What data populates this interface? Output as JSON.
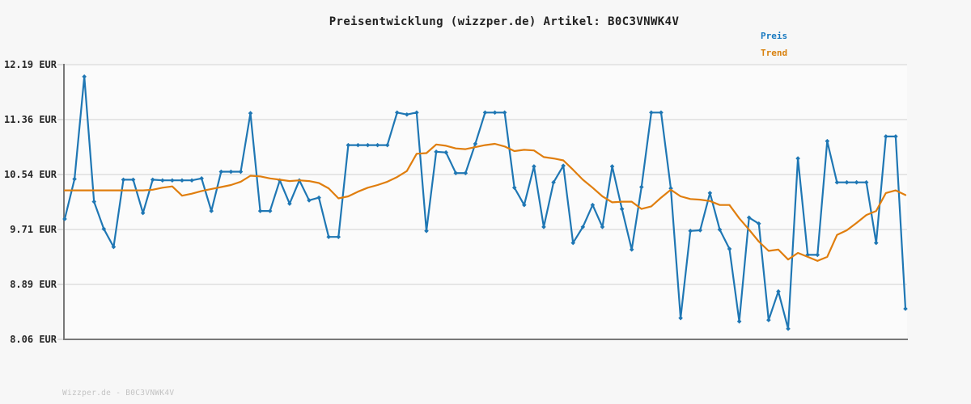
{
  "title": "Preisentwicklung (wizzper.de) Artikel: B0C3VNWK4V",
  "legend": {
    "items": [
      {
        "label": "Preis",
        "color": "#1879c0"
      },
      {
        "label": "Trend",
        "color": "#d9820f"
      }
    ]
  },
  "footer": {
    "watermark": "Wizzper.de - B0C3VNWK4V"
  },
  "colors": {
    "background": "#f7f7f7",
    "plot_background": "#fbfbfb",
    "grid": "#e6e6e6",
    "axis": "#787878",
    "title_text": "#222222",
    "tick_text": "#262626",
    "watermark_text": "#c3c3c3",
    "price_line": "#1f77b4",
    "trend_line": "#e07e0e"
  },
  "chart_data": {
    "type": "line",
    "title": "Preisentwicklung (wizzper.de) Artikel: B0C3VNWK4V",
    "xlabel": "",
    "ylabel": "EUR",
    "ylim": [
      8.06,
      12.19
    ],
    "grid": "horizontal",
    "legend_position": "top-right",
    "x_axis_labels_visible": false,
    "point_count": 87,
    "y_ticks": [
      {
        "label": "12.19 EUR",
        "value": 12.19
      },
      {
        "label": "11.36 EUR",
        "value": 11.36
      },
      {
        "label": "10.54 EUR",
        "value": 10.54
      },
      {
        "label": "9.71 EUR",
        "value": 9.71
      },
      {
        "label": "8.89 EUR",
        "value": 8.89
      },
      {
        "label": "8.06 EUR",
        "value": 8.06
      }
    ],
    "series": [
      {
        "name": "Preis",
        "color": "#1f77b4",
        "markers": true,
        "values": [
          9.87,
          10.47,
          12.01,
          10.13,
          9.72,
          9.45,
          10.46,
          10.46,
          9.96,
          10.46,
          10.45,
          10.45,
          10.45,
          10.45,
          10.48,
          9.99,
          10.58,
          10.58,
          10.58,
          11.46,
          9.99,
          9.99,
          10.45,
          10.1,
          10.45,
          10.15,
          10.19,
          9.6,
          9.6,
          10.98,
          10.98,
          10.98,
          10.98,
          10.98,
          11.47,
          11.44,
          11.47,
          9.69,
          10.88,
          10.87,
          10.56,
          10.56,
          11.0,
          11.47,
          11.47,
          11.47,
          10.34,
          10.08,
          10.66,
          9.75,
          10.42,
          10.67,
          9.51,
          9.75,
          10.08,
          9.75,
          10.66,
          10.02,
          9.41,
          10.35,
          11.47,
          11.47,
          10.33,
          8.38,
          9.69,
          9.7,
          10.26,
          9.71,
          9.42,
          8.33,
          9.89,
          9.8,
          8.35,
          8.78,
          8.22,
          10.78,
          9.33,
          9.33,
          11.04,
          10.42,
          10.42,
          10.42,
          10.42,
          9.51,
          11.11,
          11.11,
          8.52
        ]
      },
      {
        "name": "Trend",
        "color": "#e07e0e",
        "markers": false,
        "values": [
          10.3,
          10.3,
          10.3,
          10.3,
          10.3,
          10.3,
          10.3,
          10.3,
          10.3,
          10.31,
          10.34,
          10.36,
          10.22,
          10.25,
          10.29,
          10.32,
          10.35,
          10.38,
          10.43,
          10.52,
          10.51,
          10.48,
          10.46,
          10.44,
          10.45,
          10.44,
          10.41,
          10.33,
          10.18,
          10.21,
          10.28,
          10.34,
          10.38,
          10.43,
          10.5,
          10.59,
          10.85,
          10.86,
          10.99,
          10.97,
          10.93,
          10.92,
          10.95,
          10.98,
          11.0,
          10.96,
          10.89,
          10.91,
          10.9,
          10.8,
          10.78,
          10.75,
          10.61,
          10.46,
          10.34,
          10.21,
          10.12,
          10.13,
          10.13,
          10.02,
          10.06,
          10.19,
          10.31,
          10.21,
          10.17,
          10.16,
          10.14,
          10.08,
          10.08,
          9.88,
          9.71,
          9.53,
          9.39,
          9.41,
          9.26,
          9.36,
          9.3,
          9.24,
          9.3,
          9.63,
          9.7,
          9.81,
          9.93,
          9.99,
          10.26,
          10.3,
          10.23
        ]
      }
    ]
  }
}
